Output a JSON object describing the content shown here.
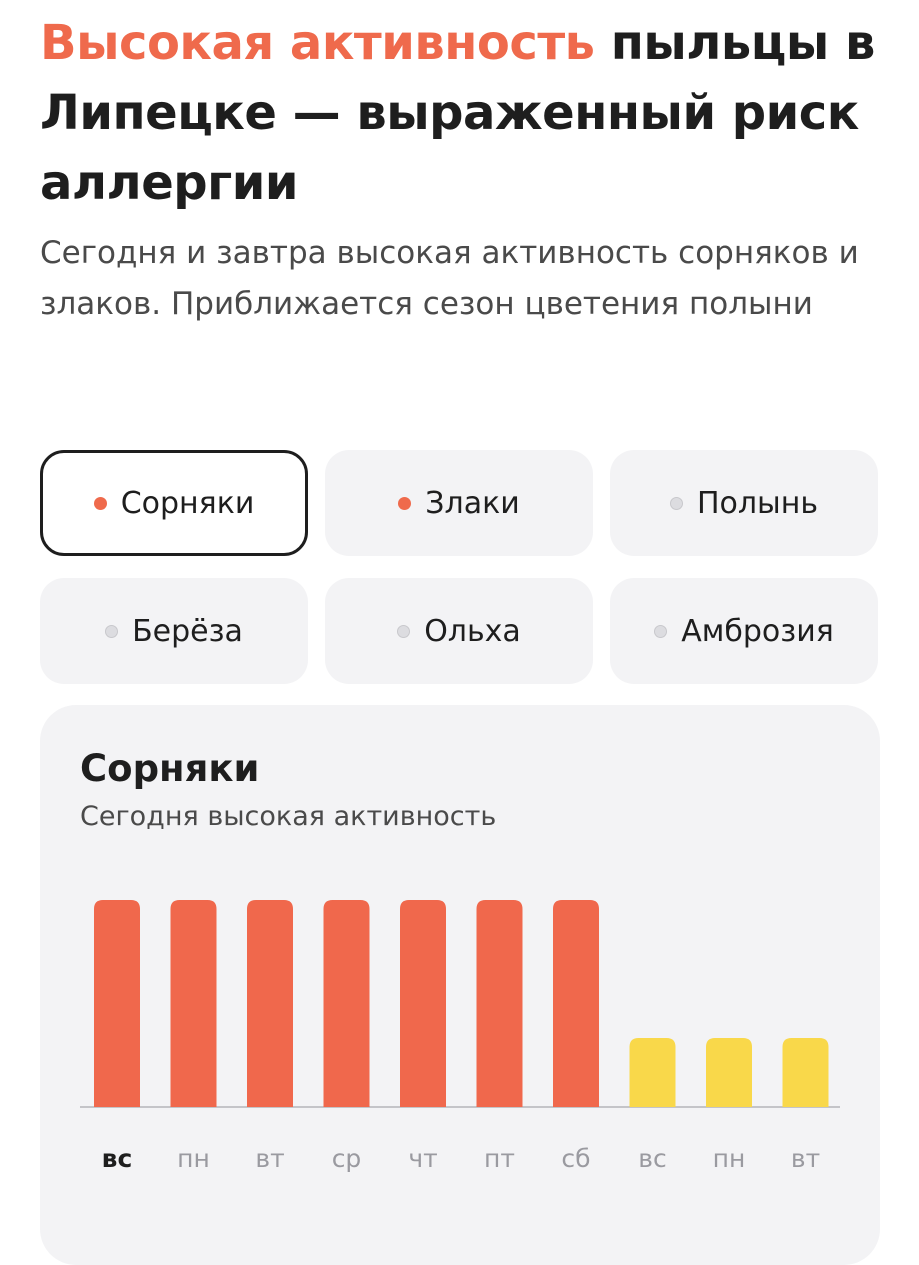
{
  "header": {
    "title_accent": "Высокая активность",
    "title_rest": " пыльцы в Липецке — выраженный риск аллергии",
    "subtitle": "Сегодня и завтра высокая активность сорняков и злаков. Приближается сезон цветения полыни"
  },
  "filters": [
    {
      "label": "Сорняки",
      "active": true,
      "selected": true
    },
    {
      "label": "Злаки",
      "active": true,
      "selected": false
    },
    {
      "label": "Полынь",
      "active": false,
      "selected": false
    },
    {
      "label": "Берёза",
      "active": false,
      "selected": false
    },
    {
      "label": "Ольха",
      "active": false,
      "selected": false
    },
    {
      "label": "Амброзия",
      "active": false,
      "selected": false
    }
  ],
  "colors": {
    "accent": "#ef6a4c",
    "high": "#f0684c",
    "medium": "#f9d84a",
    "inactive_dot": "#dcdce0",
    "card_bg": "#f3f3f5"
  },
  "card": {
    "title": "Сорняки",
    "subtitle": "Сегодня высокая активность"
  },
  "chart_data": {
    "type": "bar",
    "categories": [
      "вс",
      "пн",
      "вт",
      "ср",
      "чт",
      "пт",
      "сб",
      "вс",
      "пн",
      "вт"
    ],
    "values": [
      3,
      3,
      3,
      3,
      3,
      3,
      3,
      1,
      1,
      1
    ],
    "levels": [
      "high",
      "high",
      "high",
      "high",
      "high",
      "high",
      "high",
      "medium",
      "medium",
      "medium"
    ],
    "today_index": 0,
    "ylim": [
      0,
      3
    ],
    "title": "",
    "xlabel": "",
    "ylabel": ""
  }
}
